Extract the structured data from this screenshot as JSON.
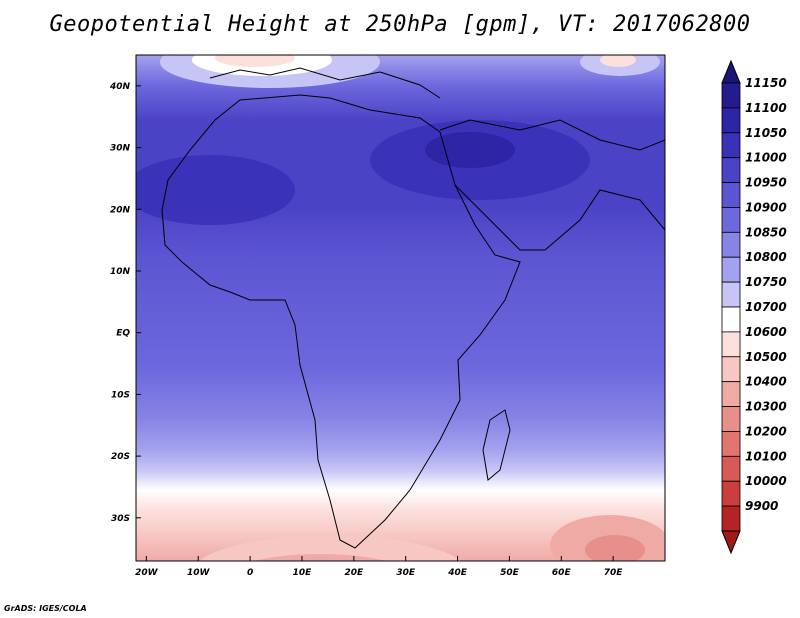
{
  "title": "Geopotential Height at 250hPa [gpm], VT: 2017062800",
  "credit": "GrADS: IGES/COLA",
  "map": {
    "lon_range": [
      -22,
      80
    ],
    "lat_range": [
      -37,
      45
    ],
    "lon_ticks": [
      {
        "value": -20,
        "label": "20W"
      },
      {
        "value": -10,
        "label": "10W"
      },
      {
        "value": 0,
        "label": "0"
      },
      {
        "value": 10,
        "label": "10E"
      },
      {
        "value": 20,
        "label": "20E"
      },
      {
        "value": 30,
        "label": "30E"
      },
      {
        "value": 40,
        "label": "40E"
      },
      {
        "value": 50,
        "label": "50E"
      },
      {
        "value": 60,
        "label": "60E"
      },
      {
        "value": 70,
        "label": "70E"
      }
    ],
    "lat_ticks": [
      {
        "value": 40,
        "label": "40N"
      },
      {
        "value": 30,
        "label": "30N"
      },
      {
        "value": 20,
        "label": "20N"
      },
      {
        "value": 10,
        "label": "10N"
      },
      {
        "value": 0,
        "label": "EQ"
      },
      {
        "value": -10,
        "label": "10S"
      },
      {
        "value": -20,
        "label": "20S"
      },
      {
        "value": -30,
        "label": "30S"
      }
    ]
  },
  "colorbar": {
    "levels": [
      {
        "label": "11150",
        "color": "#241b8f"
      },
      {
        "label": "11100",
        "color": "#2d24a6"
      },
      {
        "label": "11050",
        "color": "#3a31b8"
      },
      {
        "label": "11000",
        "color": "#4b43c6"
      },
      {
        "label": "10950",
        "color": "#5c55d2"
      },
      {
        "label": "10900",
        "color": "#6d68dd"
      },
      {
        "label": "10850",
        "color": "#8784e6"
      },
      {
        "label": "10800",
        "color": "#a4a2ee"
      },
      {
        "label": "10750",
        "color": "#c6c5f5"
      },
      {
        "label": "10700",
        "color": "#ffffff"
      },
      {
        "label": "10600",
        "color": "#fbe0dd"
      },
      {
        "label": "10500",
        "color": "#f7c7c3"
      },
      {
        "label": "10400",
        "color": "#f0aaa6"
      },
      {
        "label": "10300",
        "color": "#e88f8b"
      },
      {
        "label": "10200",
        "color": "#e07572"
      },
      {
        "label": "10100",
        "color": "#d85a58"
      },
      {
        "label": "10000",
        "color": "#cc3d3d"
      },
      {
        "label": "9900",
        "color": "#b52424"
      }
    ],
    "top_color": "#1c1478",
    "bottom_color": "#a01a1a"
  }
}
